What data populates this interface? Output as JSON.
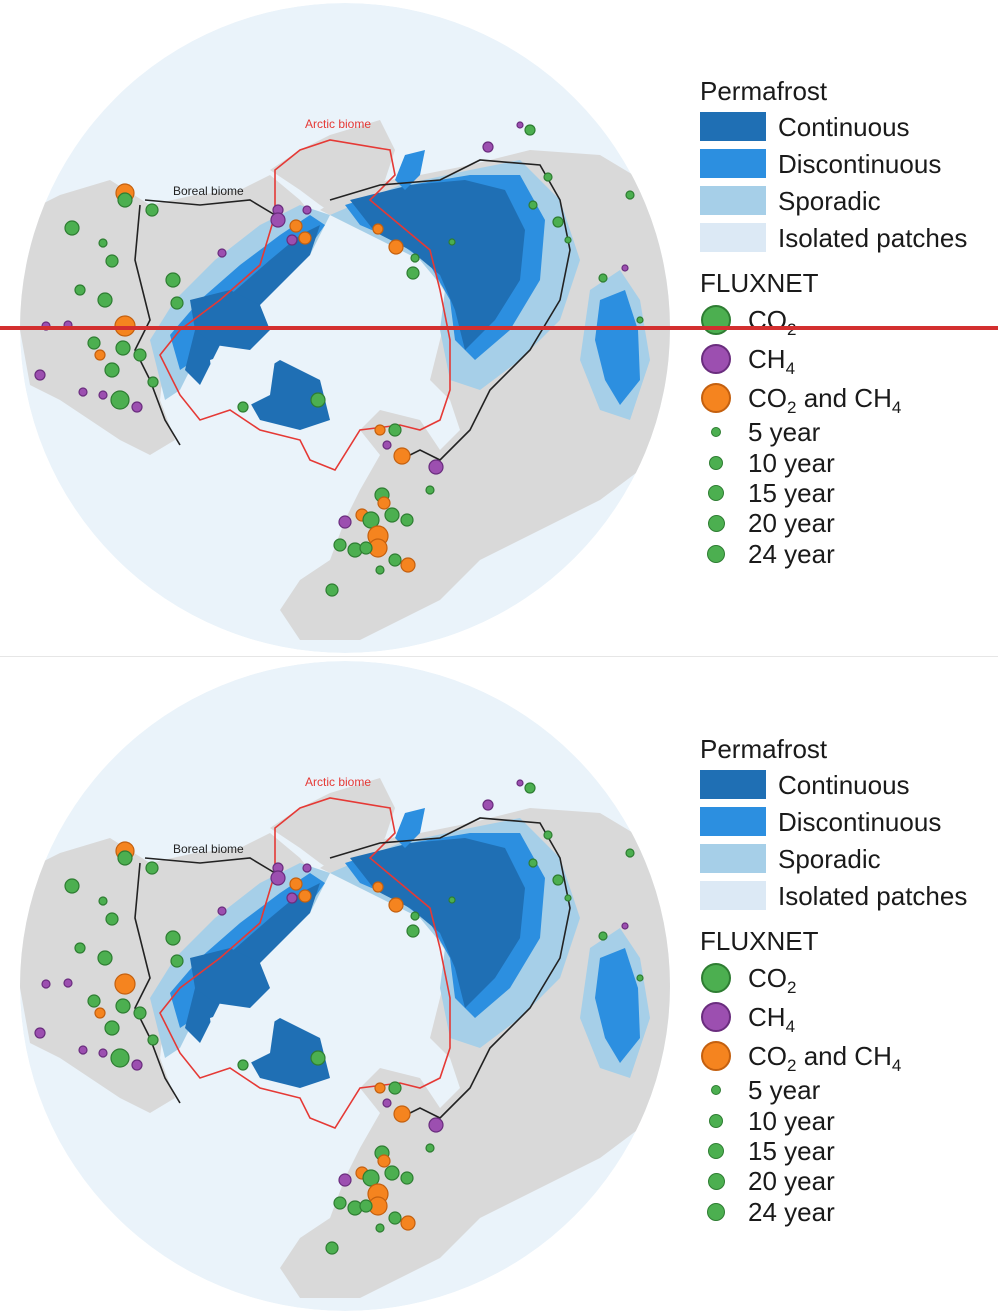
{
  "legend": {
    "permafrost_title": "Permafrost",
    "permafrost_classes": [
      {
        "label": "Continuous",
        "color": "#1f6fb4"
      },
      {
        "label": "Discontinuous",
        "color": "#2c8fe0"
      },
      {
        "label": "Sporadic",
        "color": "#a6cfe8"
      },
      {
        "label": "Isolated patches",
        "color": "#dce9f5"
      }
    ],
    "fluxnet_title": "FLUXNET",
    "fluxnet_types": [
      {
        "base": "CO",
        "sub1": "2",
        "mid": "",
        "base2": "",
        "sub2": "",
        "fill": "#4caf50",
        "stroke": "#2e7d32"
      },
      {
        "base": "CH",
        "sub1": "4",
        "mid": "",
        "base2": "",
        "sub2": "",
        "fill": "#9c4fb0",
        "stroke": "#6a2d7e"
      },
      {
        "base": "CO",
        "sub1": "2",
        "mid": " and CH",
        "base2": "",
        "sub2": "4",
        "fill": "#f5841f",
        "stroke": "#c4600f"
      }
    ],
    "durations": [
      "5 year",
      "10 year",
      "15 year",
      "20 year",
      "24 year"
    ]
  },
  "map": {
    "arctic_biome_label": "Arctic biome",
    "boreal_biome_label": "Boreal biome",
    "ocean_color": "#eaf3fa",
    "land_color": "#d9d9d9",
    "arctic_line_color": "#e53935",
    "boreal_line_color": "#222222"
  },
  "sites": [
    {
      "type": "both",
      "y": 24,
      "lon": 0
    },
    {
      "type": "co2",
      "y": 20,
      "lon": 0
    }
  ]
}
